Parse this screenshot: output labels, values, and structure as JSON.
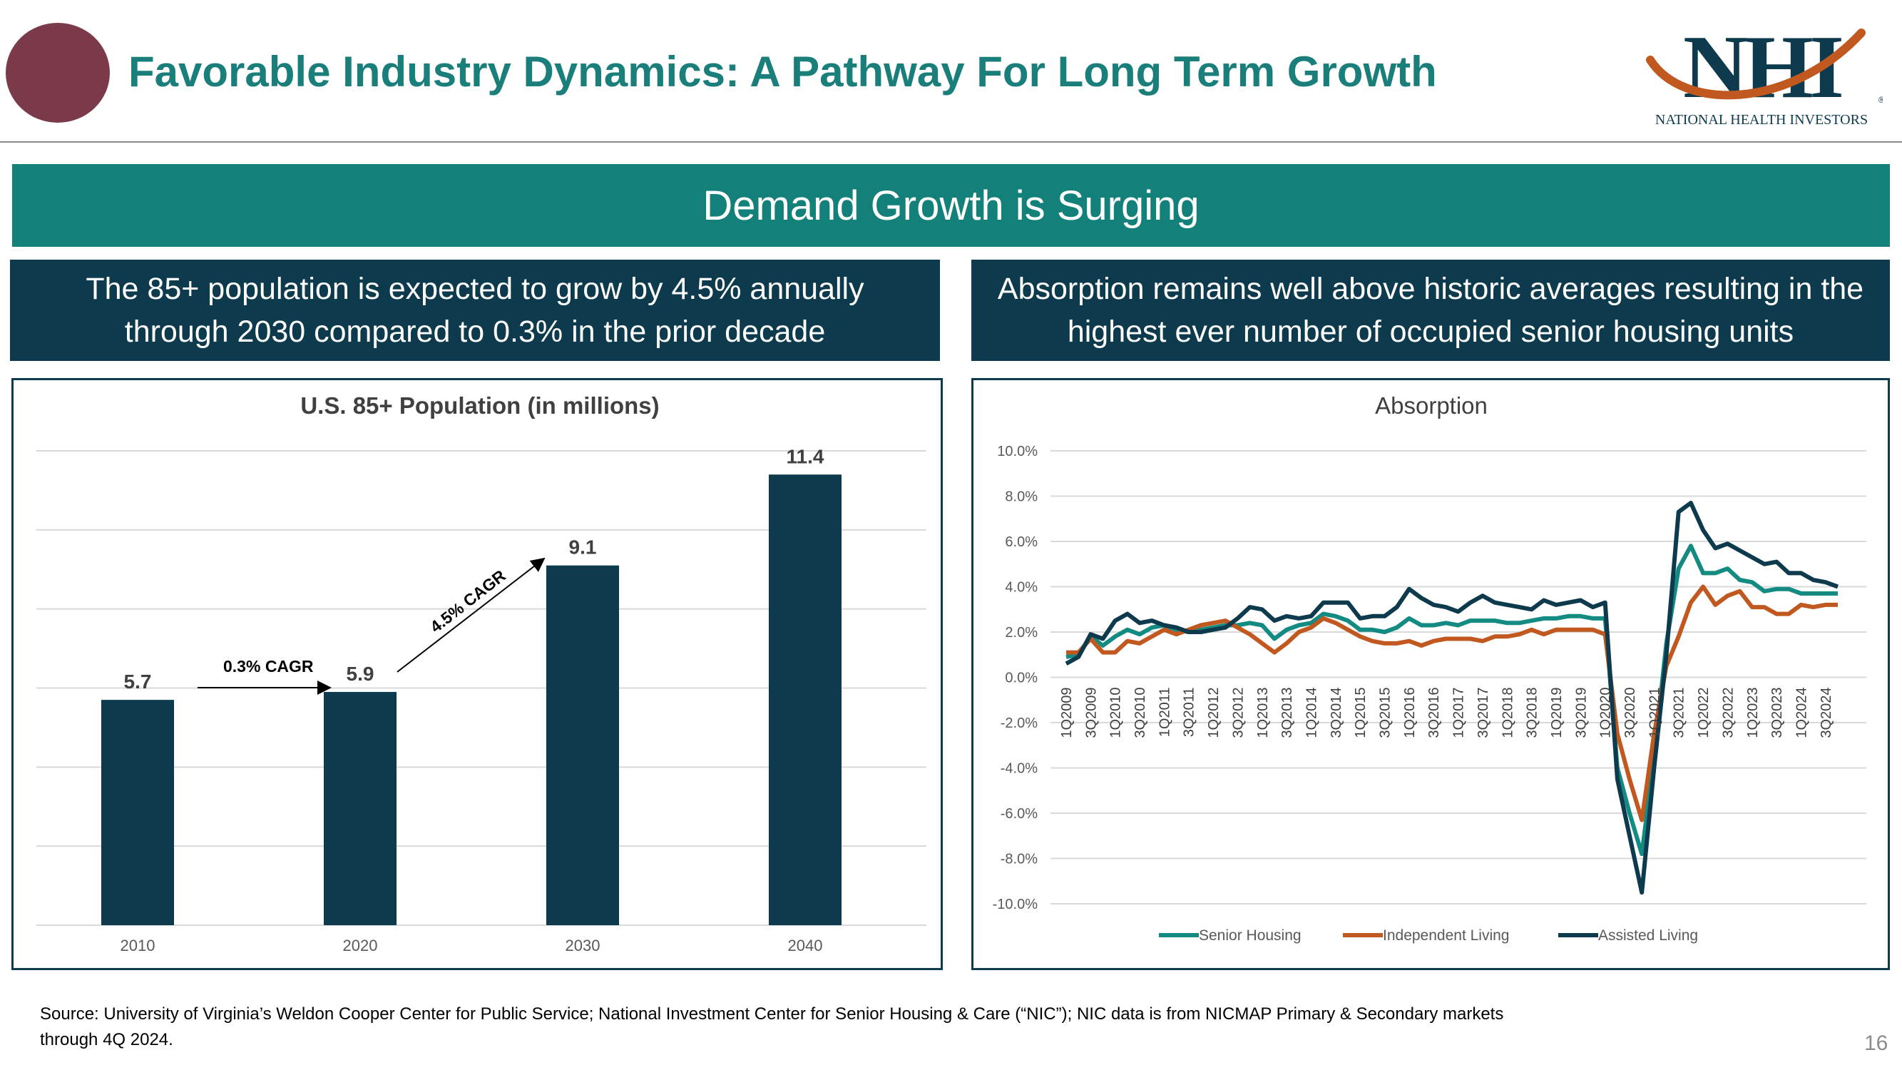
{
  "header": {
    "title": "Favorable Industry Dynamics: A Pathway For Long Term Growth",
    "logo_letters": "NHI",
    "logo_subtitle": "NATIONAL HEALTH INVESTORS",
    "logo_registered": "®"
  },
  "banner": {
    "text": "Demand Growth is Surging"
  },
  "left_panel": {
    "heading": "The 85+ population is expected to grow by 4.5% annually through 2030 compared to 0.3% in the prior decade"
  },
  "right_panel": {
    "heading": "Absorption remains well above historic averages resulting in the highest ever number of occupied senior housing units"
  },
  "colors": {
    "teal": "#138079",
    "navy": "#0d3a4c",
    "maroon": "#7b3a4a",
    "orange": "#c0581f",
    "senior_housing": "#138a82"
  },
  "chart_data": [
    {
      "type": "bar",
      "title": "U.S. 85+ Population (in millions)",
      "categories": [
        "2010",
        "2020",
        "2030",
        "2040"
      ],
      "values": [
        5.7,
        5.9,
        9.1,
        11.4
      ],
      "value_labels": [
        "5.7",
        "5.9",
        "9.1",
        "11.4"
      ],
      "ylim": [
        0,
        12
      ],
      "grid": true,
      "annotations": [
        "0.3% CAGR",
        "4.5% CAGR"
      ]
    },
    {
      "type": "line",
      "title": "Absorption",
      "x": [
        "1Q2009",
        "2Q2009",
        "3Q2009",
        "4Q2009",
        "1Q2010",
        "2Q2010",
        "3Q2010",
        "4Q2010",
        "1Q2011",
        "2Q2011",
        "3Q2011",
        "4Q2011",
        "1Q2012",
        "2Q2012",
        "3Q2012",
        "4Q2012",
        "1Q2013",
        "2Q2013",
        "3Q2013",
        "4Q2013",
        "1Q2014",
        "2Q2014",
        "3Q2014",
        "4Q2014",
        "1Q2015",
        "2Q2015",
        "3Q2015",
        "4Q2015",
        "1Q2016",
        "2Q2016",
        "3Q2016",
        "4Q2016",
        "1Q2017",
        "2Q2017",
        "3Q2017",
        "4Q2017",
        "1Q2018",
        "2Q2018",
        "3Q2018",
        "4Q2018",
        "1Q2019",
        "2Q2019",
        "3Q2019",
        "4Q2019",
        "1Q2020",
        "2Q2020",
        "3Q2020",
        "4Q2020",
        "1Q2021",
        "2Q2021",
        "3Q2021",
        "4Q2021",
        "1Q2022",
        "2Q2022",
        "3Q2022",
        "4Q2022",
        "1Q2023",
        "2Q2023",
        "3Q2023",
        "4Q2023",
        "1Q2024",
        "2Q2024",
        "3Q2024",
        "4Q2024"
      ],
      "x_tick_labels": [
        "1Q2009",
        "3Q2009",
        "1Q2010",
        "3Q2010",
        "1Q2011",
        "3Q2011",
        "1Q2012",
        "3Q2012",
        "1Q2013",
        "3Q2013",
        "1Q2014",
        "3Q2014",
        "1Q2015",
        "3Q2015",
        "1Q2016",
        "3Q2016",
        "1Q2017",
        "3Q2017",
        "1Q2018",
        "3Q2018",
        "1Q2019",
        "3Q2019",
        "1Q2020",
        "3Q2020",
        "1Q2021",
        "3Q2021",
        "1Q2022",
        "3Q2022",
        "1Q2023",
        "3Q2023",
        "1Q2024",
        "3Q2024"
      ],
      "y_tick_labels": [
        "10.0%",
        "8.0%",
        "6.0%",
        "4.0%",
        "2.0%",
        "0.0%",
        "-2.0%",
        "-4.0%",
        "-6.0%",
        "-8.0%",
        "-10.0%"
      ],
      "ylim": [
        -10,
        10
      ],
      "grid": true,
      "legend_position": "bottom",
      "series": [
        {
          "name": "Senior Housing",
          "color": "#138a82",
          "values": [
            0.9,
            1.0,
            1.8,
            1.4,
            1.8,
            2.1,
            1.9,
            2.2,
            2.3,
            2.1,
            2.0,
            2.1,
            2.2,
            2.3,
            2.3,
            2.4,
            2.3,
            1.7,
            2.1,
            2.3,
            2.4,
            2.8,
            2.7,
            2.5,
            2.1,
            2.1,
            2.0,
            2.2,
            2.6,
            2.3,
            2.3,
            2.4,
            2.3,
            2.5,
            2.5,
            2.5,
            2.4,
            2.4,
            2.5,
            2.6,
            2.6,
            2.7,
            2.7,
            2.6,
            2.6,
            -4.0,
            -6.0,
            -7.8,
            -3.5,
            1.5,
            4.8,
            5.8,
            4.6,
            4.6,
            4.8,
            4.3,
            4.2,
            3.8,
            3.9,
            3.9,
            3.7,
            3.7,
            3.7,
            3.7
          ]
        },
        {
          "name": "Independent Living",
          "color": "#c0581f",
          "values": [
            1.1,
            1.1,
            1.7,
            1.1,
            1.1,
            1.6,
            1.5,
            1.8,
            2.1,
            1.9,
            2.1,
            2.3,
            2.4,
            2.5,
            2.2,
            1.9,
            1.5,
            1.1,
            1.5,
            2.0,
            2.2,
            2.6,
            2.4,
            2.1,
            1.8,
            1.6,
            1.5,
            1.5,
            1.6,
            1.4,
            1.6,
            1.7,
            1.7,
            1.7,
            1.6,
            1.8,
            1.8,
            1.9,
            2.1,
            1.9,
            2.1,
            2.1,
            2.1,
            2.1,
            1.9,
            -2.5,
            -4.5,
            -6.3,
            -2.5,
            0.5,
            1.8,
            3.3,
            4.0,
            3.2,
            3.6,
            3.8,
            3.1,
            3.1,
            2.8,
            2.8,
            3.2,
            3.1,
            3.2,
            3.2
          ]
        },
        {
          "name": "Assisted Living",
          "color": "#0d3a4c",
          "values": [
            0.6,
            0.9,
            1.9,
            1.7,
            2.5,
            2.8,
            2.4,
            2.5,
            2.3,
            2.2,
            2.0,
            2.0,
            2.1,
            2.2,
            2.6,
            3.1,
            3.0,
            2.5,
            2.7,
            2.6,
            2.7,
            3.3,
            3.3,
            3.3,
            2.6,
            2.7,
            2.7,
            3.1,
            3.9,
            3.5,
            3.2,
            3.1,
            2.9,
            3.3,
            3.6,
            3.3,
            3.2,
            3.1,
            3.0,
            3.4,
            3.2,
            3.3,
            3.4,
            3.1,
            3.3,
            -4.5,
            -7.0,
            -9.5,
            -4.0,
            1.0,
            7.3,
            7.7,
            6.5,
            5.7,
            5.9,
            5.6,
            5.3,
            5.0,
            5.1,
            4.6,
            4.6,
            4.3,
            4.2,
            4.0
          ]
        }
      ]
    }
  ],
  "footer": {
    "source_line1": "Source:  University of Virginia’s Weldon Cooper Center for Public Service; National Investment Center for Senior Housing & Care (“NIC”); NIC data is from NICMAP Primary & Secondary markets",
    "source_line2": "through 4Q 2024.",
    "page_number": "16"
  }
}
